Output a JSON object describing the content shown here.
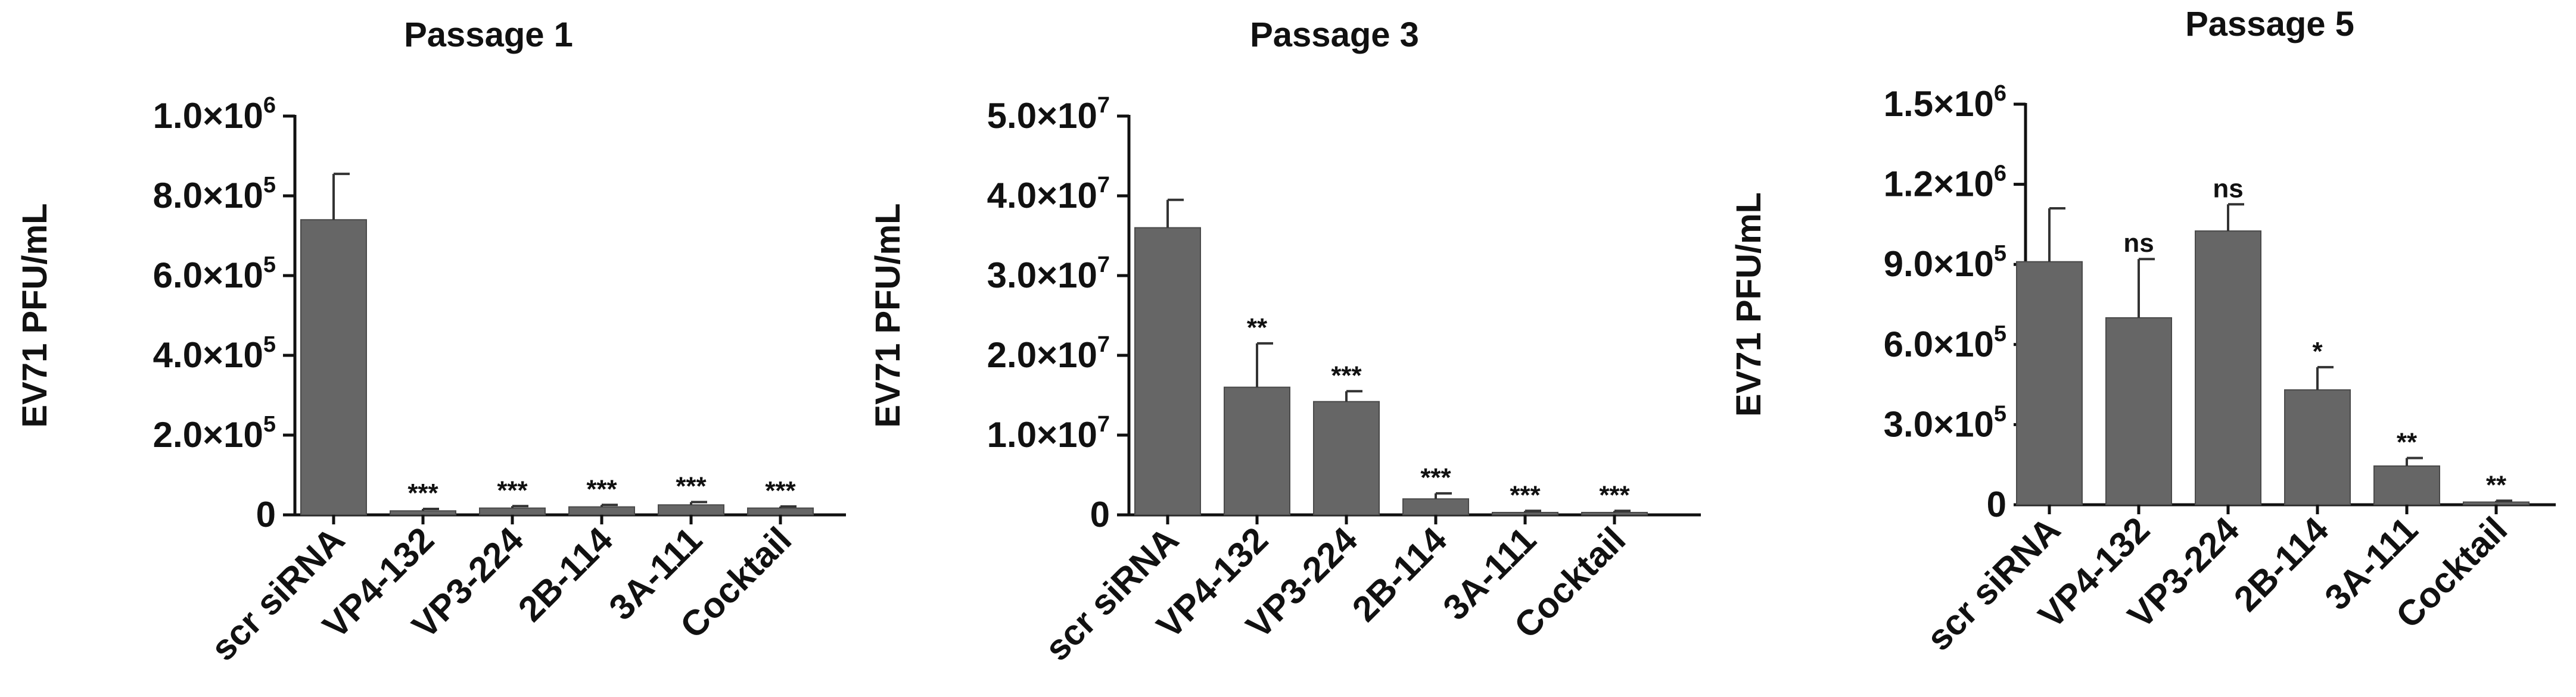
{
  "chart_data": [
    {
      "type": "bar",
      "title": "Passage 1",
      "ylabel": "EV71 PFU/mL",
      "categories": [
        "scr siRNA",
        "VP4-132",
        "VP3-224",
        "2B-114",
        "3A-111",
        "Cocktail"
      ],
      "values": [
        740000,
        10000,
        17000,
        20000,
        25000,
        17000
      ],
      "errors": [
        115000,
        5000,
        5000,
        5000,
        7000,
        4000
      ],
      "significance": [
        "",
        "***",
        "***",
        "***",
        "***",
        "***"
      ],
      "ylim": [
        0,
        1000000
      ],
      "yticks": [
        {
          "value": 0,
          "label": "0",
          "exp": ""
        },
        {
          "value": 200000,
          "label": "2.0×10",
          "exp": "5"
        },
        {
          "value": 400000,
          "label": "4.0×10",
          "exp": "5"
        },
        {
          "value": 600000,
          "label": "6.0×10",
          "exp": "5"
        },
        {
          "value": 800000,
          "label": "8.0×10",
          "exp": "5"
        },
        {
          "value": 1000000,
          "label": "1.0×10",
          "exp": "6"
        }
      ],
      "color": "#666666"
    },
    {
      "type": "bar",
      "title": "Passage 3",
      "ylabel": "EV71 PFU/mL",
      "categories": [
        "scr siRNA",
        "VP4-132",
        "VP3-224",
        "2B-114",
        "3A-111",
        "Cocktail"
      ],
      "values": [
        36000000,
        16000000,
        14200000,
        2000000,
        300000,
        300000
      ],
      "errors": [
        3500000,
        5500000,
        1300000,
        700000,
        200000,
        200000
      ],
      "significance": [
        "",
        "**",
        "***",
        "***",
        "***",
        "***"
      ],
      "ylim": [
        0,
        50000000
      ],
      "yticks": [
        {
          "value": 0,
          "label": "0",
          "exp": ""
        },
        {
          "value": 10000000,
          "label": "1.0×10",
          "exp": "7"
        },
        {
          "value": 20000000,
          "label": "2.0×10",
          "exp": "7"
        },
        {
          "value": 30000000,
          "label": "3.0×10",
          "exp": "7"
        },
        {
          "value": 40000000,
          "label": "4.0×10",
          "exp": "7"
        },
        {
          "value": 50000000,
          "label": "5.0×10",
          "exp": "7"
        }
      ],
      "color": "#666666"
    },
    {
      "type": "bar",
      "title": "Passage 5",
      "ylabel": "EV71 PFU/mL",
      "categories": [
        "scr siRNA",
        "VP4-132",
        "VP3-224",
        "2B-114",
        "3A-111",
        "Cocktail"
      ],
      "values": [
        910000,
        700000,
        1025000,
        430000,
        145000,
        10000
      ],
      "errors": [
        200000,
        220000,
        100000,
        85000,
        30000,
        5000
      ],
      "significance": [
        "",
        "ns",
        "ns",
        "*",
        "**",
        "**"
      ],
      "ylim": [
        0,
        1500000
      ],
      "yticks": [
        {
          "value": 0,
          "label": "0",
          "exp": ""
        },
        {
          "value": 300000,
          "label": "3.0×10",
          "exp": "5"
        },
        {
          "value": 600000,
          "label": "6.0×10",
          "exp": "5"
        },
        {
          "value": 900000,
          "label": "9.0×10",
          "exp": "5"
        },
        {
          "value": 1200000,
          "label": "1.2×10",
          "exp": "6"
        },
        {
          "value": 1500000,
          "label": "1.5×10",
          "exp": "6"
        }
      ],
      "color": "#666666"
    }
  ]
}
